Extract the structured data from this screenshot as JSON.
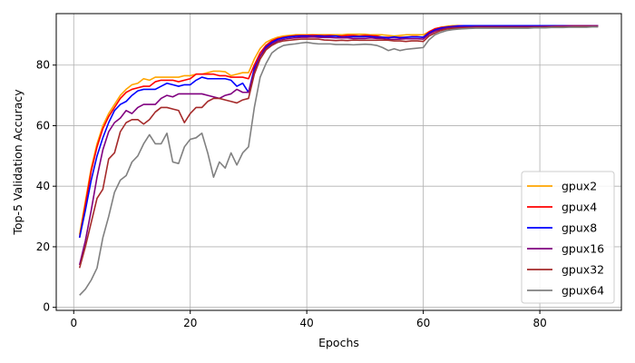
{
  "chart_data": {
    "type": "line",
    "xlabel": "Epochs",
    "ylabel": "Top-5 Validation Accuracy",
    "xlim": [
      -3,
      94
    ],
    "ylim": [
      -1,
      97
    ],
    "xticks": [
      0,
      20,
      40,
      60,
      80
    ],
    "yticks": [
      0,
      20,
      40,
      60,
      80
    ],
    "grid": true,
    "legend_position": "lower-right",
    "x": [
      1,
      2,
      3,
      4,
      5,
      6,
      7,
      8,
      9,
      10,
      11,
      12,
      13,
      14,
      15,
      16,
      17,
      18,
      19,
      20,
      21,
      22,
      23,
      24,
      25,
      26,
      27,
      28,
      29,
      30,
      31,
      32,
      33,
      34,
      35,
      36,
      37,
      38,
      39,
      40,
      41,
      42,
      43,
      44,
      45,
      46,
      47,
      48,
      49,
      50,
      51,
      52,
      53,
      54,
      55,
      56,
      57,
      58,
      59,
      60,
      61,
      62,
      63,
      64,
      65,
      66,
      67,
      68,
      69,
      70,
      71,
      72,
      73,
      74,
      75,
      76,
      77,
      78,
      79,
      80,
      81,
      82,
      83,
      84,
      85,
      86,
      87,
      88,
      89,
      90
    ],
    "series": [
      {
        "name": "gpux2",
        "color": "#ffa500",
        "values": [
          24,
          35,
          46,
          54,
          60,
          64,
          67,
          70,
          72,
          73.5,
          74,
          75.5,
          75,
          76,
          76,
          76,
          76,
          76,
          76.5,
          76.5,
          77,
          77,
          77.5,
          78,
          78,
          77.8,
          76.5,
          77,
          77.5,
          77.5,
          82,
          85.5,
          87.5,
          88.5,
          89.2,
          89.6,
          89.8,
          90,
          90,
          90,
          90,
          90,
          90,
          90,
          90,
          90,
          90.2,
          90.2,
          90.2,
          90.2,
          90,
          90,
          90,
          89.8,
          89.6,
          89.8,
          90,
          90,
          90,
          90,
          91,
          92,
          92.5,
          92.8,
          93,
          93,
          93,
          93,
          93,
          93,
          93,
          93,
          93,
          93,
          93,
          93,
          93,
          93,
          93,
          93,
          93,
          93,
          93,
          93,
          93,
          93,
          93,
          93,
          93,
          93
        ]
      },
      {
        "name": "gpux4",
        "color": "#ff0000",
        "values": [
          23,
          34,
          45,
          53,
          59,
          63,
          66,
          69,
          71,
          72,
          72.5,
          73,
          73,
          74.5,
          75,
          75,
          75,
          74.5,
          75,
          75.5,
          77,
          77,
          77,
          77,
          76.5,
          76.5,
          76,
          76,
          76,
          75.5,
          80,
          84,
          86.5,
          88,
          88.8,
          89.2,
          89.5,
          89.7,
          89.8,
          89.8,
          89.9,
          89.8,
          89.7,
          89.8,
          89.6,
          89.6,
          89.8,
          89.8,
          89.6,
          89.8,
          89.7,
          89.6,
          89.2,
          89.2,
          89.2,
          89.2,
          89.2,
          89.4,
          89.4,
          89.2,
          91,
          92,
          92.4,
          92.6,
          92.8,
          93,
          93,
          93,
          93,
          93,
          93,
          93,
          93,
          93,
          93,
          93,
          93,
          93,
          93,
          93,
          93,
          93,
          93,
          93,
          93,
          93,
          93,
          93,
          93,
          93
        ]
      },
      {
        "name": "gpux8",
        "color": "#0000ff",
        "values": [
          23,
          32,
          42,
          50,
          56,
          61,
          65,
          67,
          68,
          70,
          71.5,
          72,
          72,
          72,
          73,
          74,
          73.5,
          73,
          73.5,
          73.5,
          75,
          76,
          75.5,
          75.5,
          75.5,
          75.5,
          75,
          73,
          74,
          71,
          79,
          83,
          86,
          87.5,
          88.5,
          89,
          89.3,
          89.5,
          89.6,
          89.6,
          89.5,
          89.6,
          89.5,
          89.5,
          89.6,
          89.2,
          89.3,
          89.4,
          89.4,
          89.4,
          89.4,
          89.2,
          89.2,
          89,
          89.3,
          89,
          89.2,
          89.3,
          89.3,
          89.2,
          90.6,
          91.6,
          92.2,
          92.5,
          92.7,
          92.9,
          93,
          93,
          93,
          93,
          93,
          93,
          93,
          93,
          93,
          93,
          93,
          93,
          93,
          93,
          93,
          93,
          93,
          93,
          93,
          93,
          93,
          93,
          93,
          93
        ]
      },
      {
        "name": "gpux16",
        "color": "#800080",
        "values": [
          14,
          22,
          32,
          43,
          52,
          58,
          61,
          62.5,
          65,
          64,
          66,
          67,
          67,
          67,
          69,
          70,
          69.5,
          70.5,
          70.5,
          70.5,
          70.5,
          70.5,
          70,
          69.5,
          69,
          70,
          70.5,
          72,
          71,
          71,
          78,
          83,
          85.5,
          87,
          88,
          88.5,
          88.8,
          89,
          89.2,
          89.2,
          89.3,
          89.2,
          89.1,
          89.1,
          89,
          89,
          89,
          88.8,
          88.8,
          88.8,
          89,
          88.8,
          88.8,
          88.5,
          88.5,
          88.6,
          88.7,
          88.7,
          88.7,
          88.6,
          90.2,
          91.2,
          91.8,
          92.2,
          92.4,
          92.5,
          92.6,
          92.6,
          92.7,
          92.7,
          92.7,
          92.7,
          92.7,
          92.7,
          92.7,
          92.7,
          92.7,
          92.7,
          92.7,
          92.7,
          92.8,
          92.8,
          92.9,
          92.9,
          93,
          93,
          93,
          93,
          93,
          93
        ]
      },
      {
        "name": "gpux32",
        "color": "#a52a2a",
        "values": [
          13,
          20,
          28,
          36,
          39,
          49,
          51,
          58,
          61,
          62,
          62,
          60.5,
          62,
          64.5,
          66,
          66,
          65.5,
          65,
          61,
          64,
          66,
          66,
          68,
          69,
          69,
          68.5,
          68,
          67.5,
          68.5,
          69,
          77,
          82,
          85,
          86.5,
          87.5,
          88,
          88.2,
          88.4,
          88.6,
          88.6,
          88.6,
          88.6,
          88.3,
          88.2,
          88.1,
          88.2,
          88.1,
          88.3,
          88.2,
          88.2,
          88.2,
          88.2,
          88.3,
          88.2,
          88,
          88,
          87.8,
          88,
          88,
          87.8,
          89.6,
          90.6,
          91.4,
          91.9,
          92.1,
          92.2,
          92.3,
          92.3,
          92.4,
          92.4,
          92.4,
          92.4,
          92.4,
          92.4,
          92.4,
          92.4,
          92.4,
          92.4,
          92.5,
          92.5,
          92.5,
          92.6,
          92.6,
          92.6,
          92.6,
          92.7,
          92.7,
          92.7,
          92.7,
          92.7
        ]
      },
      {
        "name": "gpux64",
        "color": "#808080",
        "values": [
          4,
          6,
          9,
          13,
          23,
          30,
          38,
          42,
          43.5,
          48,
          50,
          54,
          57,
          54,
          54,
          57.5,
          48,
          47.5,
          53,
          55.5,
          56,
          57.5,
          51,
          43,
          48,
          46,
          51,
          47,
          51,
          53,
          66,
          76,
          80.5,
          84,
          85.5,
          86.5,
          86.8,
          87,
          87.3,
          87.5,
          87.2,
          87,
          87,
          87,
          86.8,
          86.8,
          86.8,
          86.7,
          86.8,
          86.9,
          86.8,
          86.5,
          85.8,
          84.8,
          85.4,
          84.8,
          85.2,
          85.4,
          85.6,
          85.8,
          88.4,
          90,
          90.8,
          91.4,
          91.7,
          91.9,
          92,
          92.1,
          92.2,
          92.2,
          92.2,
          92.2,
          92.2,
          92.2,
          92.2,
          92.2,
          92.2,
          92.2,
          92.3,
          92.3,
          92.3,
          92.4,
          92.4,
          92.4,
          92.5,
          92.5,
          92.5,
          92.5,
          92.6,
          92.6
        ]
      }
    ]
  }
}
